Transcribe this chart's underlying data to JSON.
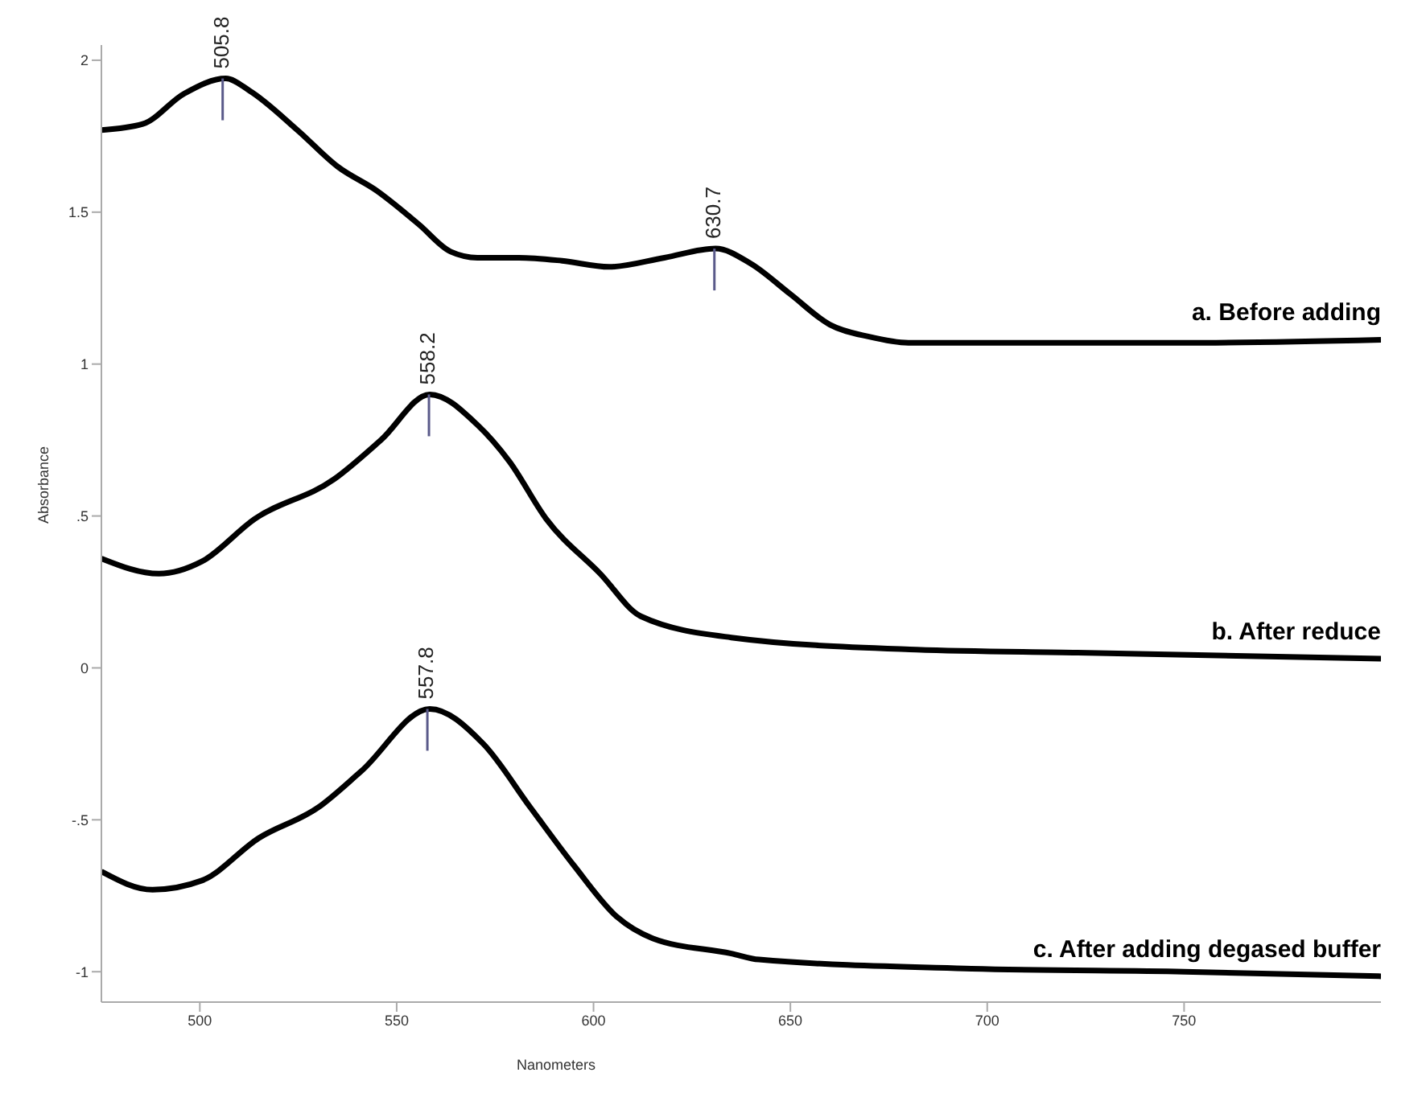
{
  "chart_data": {
    "type": "line",
    "xlabel": "Nanometers",
    "ylabel": "Absorbance",
    "xlim": [
      475,
      800
    ],
    "xticks": [
      500,
      550,
      600,
      650,
      700,
      750
    ],
    "ylim": [
      -1.1,
      2.05
    ],
    "yticks": [
      -1,
      {
        "value": -0.5,
        "label": "-.5"
      },
      0,
      {
        "value": 0.5,
        "label": ".5"
      },
      1,
      1.5,
      2
    ],
    "grid": false,
    "legend": false,
    "marker": "none",
    "line_style": "solid",
    "series": [
      {
        "name": "a. Before adding",
        "color": "#000000",
        "x": [
          475,
          485.5,
          496,
          506.6,
          512.6,
          524.8,
          535,
          545,
          555.6,
          563.7,
          570.5,
          581,
          592,
          604,
          618,
          631,
          640,
          650,
          660,
          670,
          680,
          700,
          750,
          800
        ],
        "values": [
          1.77,
          1.79,
          1.89,
          1.94,
          1.9,
          1.77,
          1.65,
          1.57,
          1.46,
          1.37,
          1.35,
          1.35,
          1.34,
          1.32,
          1.35,
          1.38,
          1.33,
          1.23,
          1.13,
          1.09,
          1.07,
          1.07,
          1.07,
          1.08
        ]
      },
      {
        "name": "b. After reduce",
        "color": "#000000",
        "x": [
          475,
          489.6,
          500.5,
          513.9,
          534,
          546,
          558.4,
          570.5,
          578.6,
          588,
          601.7,
          612,
          635,
          682,
          723,
          800
        ],
        "values": [
          0.36,
          0.31,
          0.35,
          0.49,
          0.62,
          0.75,
          0.9,
          0.8,
          0.68,
          0.49,
          0.31,
          0.17,
          0.1,
          0.06,
          0.05,
          0.03
        ]
      },
      {
        "name": "c. After adding degased buffer",
        "color": "#000000",
        "x": [
          475,
          488,
          500.5,
          515,
          530,
          541,
          558.4,
          572,
          584,
          595,
          606,
          615,
          635,
          642,
          696,
          750,
          800
        ],
        "values": [
          -0.67,
          -0.73,
          -0.7,
          -0.56,
          -0.46,
          -0.34,
          -0.135,
          -0.25,
          -0.46,
          -0.65,
          -0.82,
          -0.89,
          -0.94,
          -0.96,
          -0.99,
          -1.0,
          -1.015
        ]
      }
    ],
    "annotations": [
      {
        "text": "505.8",
        "x": 505.8,
        "y": 1.94
      },
      {
        "text": "630.7",
        "x": 630.7,
        "y": 1.38
      },
      {
        "text": "558.2",
        "x": 558.2,
        "y": 0.9
      },
      {
        "text": "557.8",
        "x": 557.8,
        "y": -0.135
      }
    ]
  }
}
